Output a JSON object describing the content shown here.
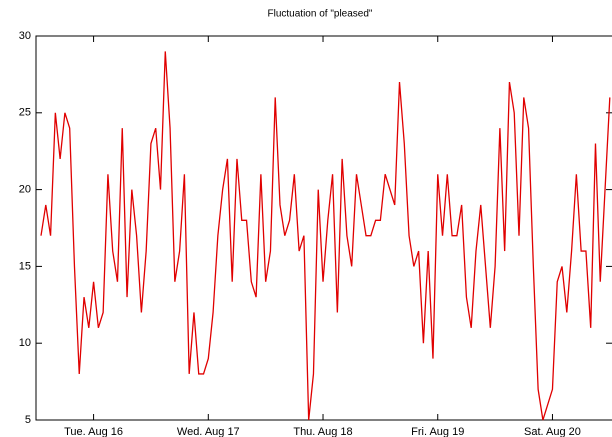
{
  "chart_data": {
    "type": "line",
    "title": "Fluctuation of \"pleased\"",
    "categories": [
      null,
      null,
      null,
      null,
      null,
      null,
      null,
      null,
      null,
      null,
      null,
      "Tue. Aug 16",
      null,
      null,
      null,
      null,
      null,
      null,
      null,
      null,
      null,
      null,
      null,
      null,
      null,
      null,
      null,
      null,
      null,
      null,
      null,
      null,
      null,
      null,
      null,
      "Wed. Aug 17",
      null,
      null,
      null,
      null,
      null,
      null,
      null,
      null,
      null,
      null,
      null,
      null,
      null,
      null,
      null,
      null,
      null,
      null,
      null,
      null,
      null,
      null,
      null,
      "Thu. Aug 18",
      null,
      null,
      null,
      null,
      null,
      null,
      null,
      null,
      null,
      null,
      null,
      null,
      null,
      null,
      null,
      null,
      null,
      null,
      null,
      null,
      null,
      null,
      null,
      "Fri. Aug 19",
      null,
      null,
      null,
      null,
      null,
      null,
      null,
      null,
      null,
      null,
      null,
      null,
      null,
      null,
      null,
      null,
      null,
      null,
      null,
      null,
      null,
      null,
      null,
      "Sat. Aug 20",
      null,
      null,
      null,
      null,
      null,
      null,
      null,
      null,
      null,
      null,
      null,
      null
    ],
    "values": [
      17,
      19,
      17,
      25,
      22,
      25,
      24,
      15,
      8,
      13,
      11,
      14,
      11,
      12,
      21,
      16,
      14,
      24,
      13,
      20,
      17,
      12,
      16,
      23,
      24,
      20,
      29,
      24,
      14,
      16,
      21,
      8,
      12,
      8,
      8,
      9,
      12,
      17,
      20,
      22,
      14,
      22,
      18,
      18,
      14,
      13,
      21,
      14,
      16,
      26,
      19,
      17,
      18,
      21,
      16,
      17,
      5,
      8,
      20,
      14,
      18,
      21,
      12,
      22,
      17,
      15,
      21,
      19,
      17,
      17,
      18,
      18,
      21,
      20,
      19,
      27,
      23,
      17,
      15,
      16,
      10,
      16,
      9,
      21,
      17,
      21,
      17,
      17,
      19,
      13,
      11,
      16,
      19,
      15,
      11,
      15,
      24,
      16,
      27,
      25,
      17,
      26,
      24,
      15,
      7,
      5,
      6,
      7,
      14,
      15,
      12,
      16,
      21,
      16,
      16,
      11,
      23,
      14,
      20,
      26
    ],
    "color": "#e00000",
    "ylim": [
      5,
      30
    ],
    "yticks": [
      5,
      10,
      15,
      20,
      25,
      30
    ]
  }
}
